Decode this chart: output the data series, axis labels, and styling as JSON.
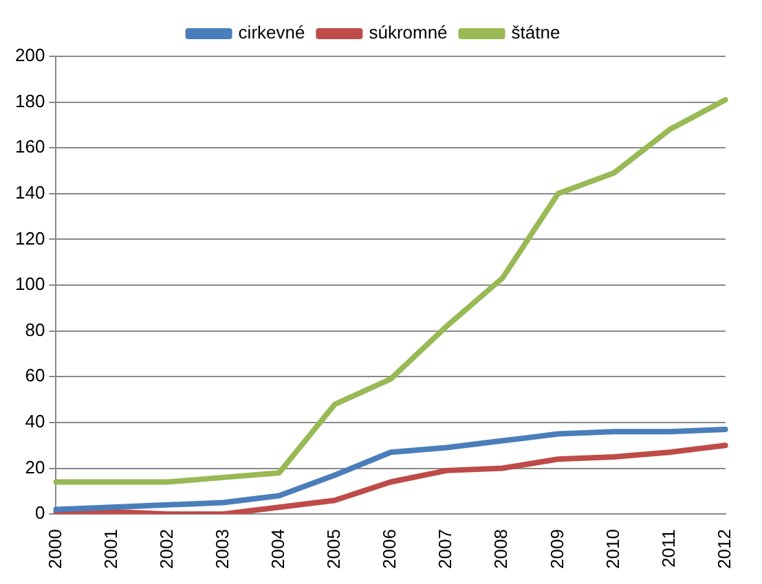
{
  "chart_data": {
    "type": "line",
    "categories": [
      "2000",
      "2001",
      "2002",
      "2003",
      "2004",
      "2005",
      "2006",
      "2007",
      "2008",
      "2009",
      "2010",
      "2011",
      "2012"
    ],
    "series": [
      {
        "name": "cirkevné",
        "color": "#4a7ebb",
        "values": [
          2,
          3,
          4,
          5,
          8,
          17,
          27,
          29,
          32,
          35,
          36,
          36,
          37
        ]
      },
      {
        "name": "súkromné",
        "color": "#be4b48",
        "values": [
          1,
          1,
          0,
          0,
          3,
          6,
          14,
          19,
          20,
          24,
          25,
          27,
          30
        ]
      },
      {
        "name": "štátne",
        "color": "#98b954",
        "values": [
          14,
          14,
          14,
          16,
          18,
          48,
          59,
          82,
          103,
          140,
          149,
          168,
          181
        ]
      }
    ],
    "ylim": [
      0,
      200
    ],
    "yticks": [
      0,
      20,
      40,
      60,
      80,
      100,
      120,
      140,
      160,
      180,
      200
    ],
    "grid": "y",
    "legend": "top",
    "marker": "none",
    "line_style": "solid"
  }
}
